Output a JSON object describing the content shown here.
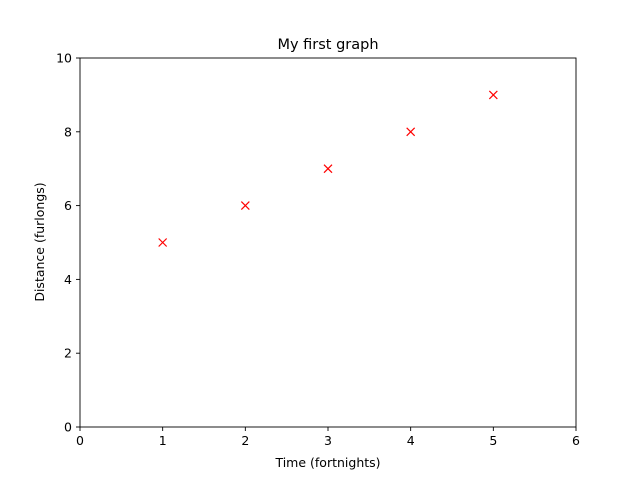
{
  "chart_data": {
    "type": "scatter",
    "title": "My first graph",
    "xlabel": "Time (fortnights)",
    "ylabel": "Distance (furlongs)",
    "xlim": [
      0,
      6
    ],
    "ylim": [
      0,
      10
    ],
    "xticks": [
      0,
      1,
      2,
      3,
      4,
      5,
      6
    ],
    "yticks": [
      0,
      2,
      4,
      6,
      8,
      10
    ],
    "grid": false,
    "marker": "x",
    "marker_color": "#ff0000",
    "series": [
      {
        "x": [
          1,
          2,
          3,
          4,
          5
        ],
        "y": [
          5,
          6,
          7,
          8,
          9
        ]
      }
    ]
  }
}
